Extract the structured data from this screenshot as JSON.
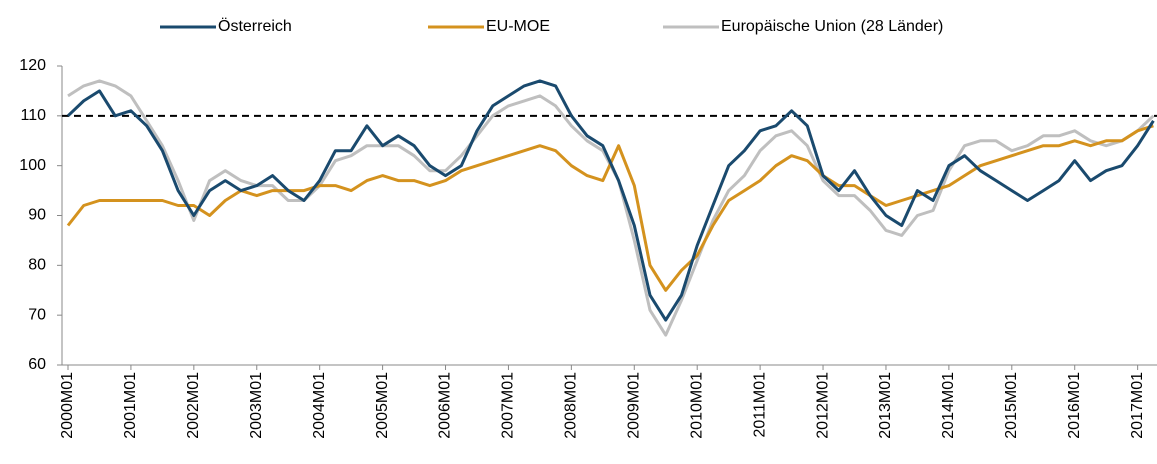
{
  "chart_data": {
    "type": "line",
    "categories": [
      "2000M01",
      null,
      null,
      null,
      "2001M01",
      null,
      null,
      null,
      "2002M01",
      null,
      null,
      null,
      "2003M01",
      null,
      null,
      null,
      "2004M01",
      null,
      null,
      null,
      "2005M01",
      null,
      null,
      null,
      "2006M01",
      null,
      null,
      null,
      "2007M01",
      null,
      null,
      null,
      "2008M01",
      null,
      null,
      null,
      "2009M01",
      null,
      null,
      null,
      "2010M01",
      null,
      null,
      null,
      "2011M01",
      null,
      null,
      null,
      "2012M01",
      null,
      null,
      null,
      "2013M01",
      null,
      null,
      null,
      "2014M01",
      null,
      null,
      null,
      "2015M01",
      null,
      null,
      null,
      "2016M01",
      null,
      null,
      null,
      "2017M01",
      null
    ],
    "series": [
      {
        "name": "Österreich",
        "color": "#1a4a6e",
        "values": [
          110,
          113,
          115,
          110,
          111,
          108,
          103,
          95,
          90,
          95,
          97,
          95,
          96,
          98,
          95,
          93,
          97,
          103,
          103,
          108,
          104,
          106,
          104,
          100,
          98,
          100,
          107,
          112,
          114,
          116,
          117,
          116,
          110,
          106,
          104,
          97,
          88,
          74,
          69,
          74,
          84,
          92,
          100,
          103,
          107,
          108,
          111,
          108,
          98,
          95,
          99,
          94,
          90,
          88,
          95,
          93,
          100,
          102,
          99,
          97,
          95,
          93,
          95,
          97,
          101,
          97,
          99,
          100,
          104,
          109
        ]
      },
      {
        "name": "EU-MOE",
        "color": "#d4921e",
        "values": [
          88,
          92,
          93,
          93,
          93,
          93,
          93,
          92,
          92,
          90,
          93,
          95,
          94,
          95,
          95,
          95,
          96,
          96,
          95,
          97,
          98,
          97,
          97,
          96,
          97,
          99,
          100,
          101,
          102,
          103,
          104,
          103,
          100,
          98,
          97,
          104,
          96,
          80,
          75,
          79,
          82,
          88,
          93,
          95,
          97,
          100,
          102,
          101,
          98,
          96,
          96,
          94,
          92,
          93,
          94,
          95,
          96,
          98,
          100,
          101,
          102,
          103,
          104,
          104,
          105,
          104,
          105,
          105,
          107,
          108
        ]
      },
      {
        "name": "Europäische Union (28 Länder)",
        "color": "#bfbfbf",
        "values": [
          114,
          116,
          117,
          116,
          114,
          109,
          104,
          97,
          89,
          97,
          99,
          97,
          96,
          96,
          93,
          93,
          96,
          101,
          102,
          104,
          104,
          104,
          102,
          99,
          99,
          102,
          106,
          110,
          112,
          113,
          114,
          112,
          108,
          105,
          103,
          97,
          85,
          71,
          66,
          73,
          81,
          89,
          95,
          98,
          103,
          106,
          107,
          104,
          97,
          94,
          94,
          91,
          87,
          86,
          90,
          91,
          99,
          104,
          105,
          105,
          103,
          104,
          106,
          106,
          107,
          105,
          104,
          105,
          107,
          110
        ]
      }
    ],
    "reference_line": 110,
    "ylim": [
      60,
      120
    ],
    "yticks": [
      60,
      70,
      80,
      90,
      100,
      110,
      120
    ],
    "grid": false,
    "legend": "top"
  }
}
